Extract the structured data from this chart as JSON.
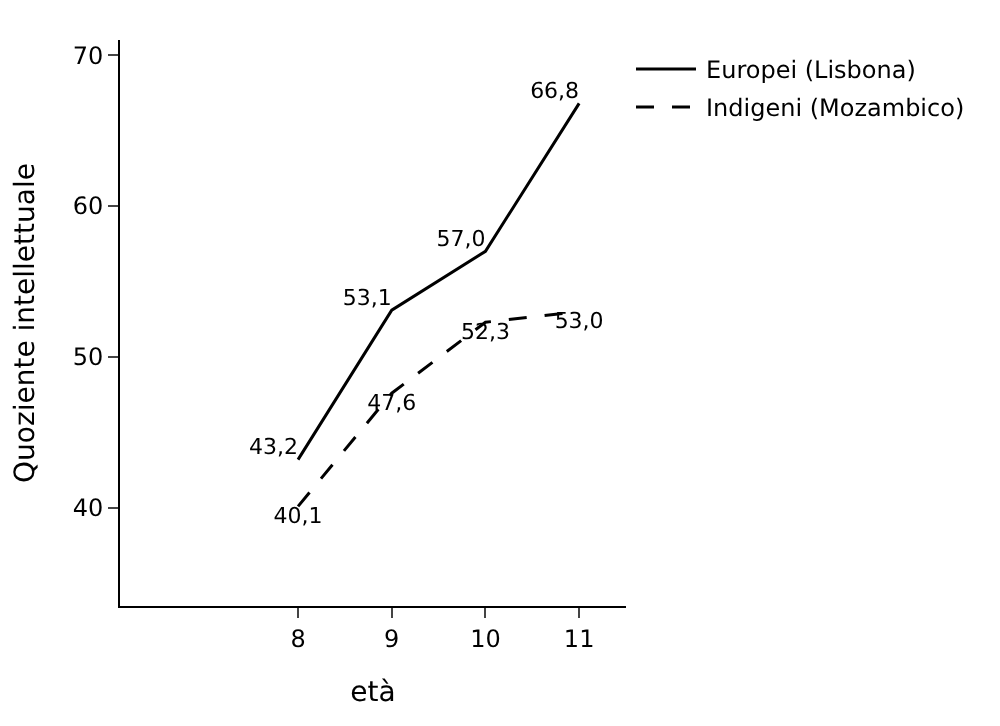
{
  "chart_data": {
    "type": "line",
    "xlabel": "età",
    "ylabel": "Quoziente intellettuale",
    "x": [
      8,
      9,
      10,
      11
    ],
    "xlim": [
      6.1,
      11.5
    ],
    "xticks": [
      8,
      9,
      10,
      11
    ],
    "ylim": [
      33.5,
      71
    ],
    "yticks": [
      40,
      50,
      60,
      70
    ],
    "legend": "top right",
    "marker": "none",
    "series": [
      {
        "name": "Europei (Lisbona)",
        "color": "#000000",
        "line_style": "solid",
        "values": [
          43.2,
          53.1,
          57.0,
          66.8
        ],
        "value_labels": [
          "43,2",
          "53,1",
          "57,0",
          "66,8"
        ]
      },
      {
        "name": "Indigeni (Mozambico)",
        "color": "#000000",
        "line_style": "dashed",
        "values": [
          40.1,
          47.6,
          52.3,
          53.0
        ],
        "value_labels": [
          "40,1",
          "47,6",
          "52,3",
          "53,0"
        ]
      }
    ]
  }
}
